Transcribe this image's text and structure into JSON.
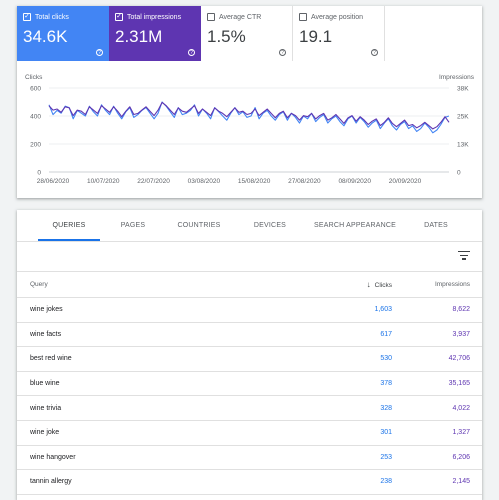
{
  "metrics": [
    {
      "label": "Total clicks",
      "value": "34.6K",
      "checked": true,
      "color": "#4285f4"
    },
    {
      "label": "Total impressions",
      "value": "2.31M",
      "checked": true,
      "color": "#5e35b1"
    },
    {
      "label": "Average CTR",
      "value": "1.5%",
      "checked": false
    },
    {
      "label": "Average position",
      "value": "19.1",
      "checked": false
    }
  ],
  "help_glyph": "?",
  "check_glyph": "✓",
  "chart_data": {
    "type": "line",
    "left_axis_label": "Clicks",
    "right_axis_label": "Impressions",
    "left_ticks": [
      "600",
      "400",
      "200",
      "0"
    ],
    "right_ticks": [
      "38K",
      "25K",
      "13K",
      "0"
    ],
    "left_ylim": [
      0,
      600
    ],
    "right_ylim": [
      0,
      38000
    ],
    "x_ticks": [
      "28/06/2020",
      "10/07/2020",
      "22/07/2020",
      "03/08/2020",
      "15/08/2020",
      "27/08/2020",
      "08/09/2020",
      "20/09/2020"
    ],
    "grid": true,
    "series": [
      {
        "name": "Total clicks",
        "axis": "left",
        "color": "#4285f4",
        "values": [
          480,
          410,
          440,
          420,
          470,
          460,
          380,
          440,
          420,
          400,
          470,
          430,
          400,
          480,
          440,
          410,
          470,
          420,
          380,
          430,
          460,
          390,
          410,
          440,
          460,
          420,
          380,
          420,
          500,
          470,
          430,
          390,
          460,
          410,
          420,
          440,
          480,
          400,
          450,
          420,
          380,
          460,
          430,
          400,
          370,
          420,
          460,
          410,
          430,
          390,
          400,
          460,
          380,
          420,
          440,
          400,
          370,
          410,
          430,
          370,
          420,
          390,
          350,
          400,
          380,
          420,
          360,
          390,
          410,
          350,
          380,
          400,
          360,
          330,
          380,
          400,
          350,
          390,
          360,
          320,
          350,
          370,
          310,
          350,
          380,
          330,
          300,
          340,
          360,
          310,
          330,
          290,
          310,
          350,
          320,
          280,
          300,
          340,
          390,
          400
        ]
      },
      {
        "name": "Total impressions",
        "axis": "right",
        "color": "#5e35b1",
        "values": [
          30000,
          28000,
          28500,
          27000,
          29500,
          29000,
          25500,
          28000,
          27500,
          26000,
          29500,
          28000,
          26500,
          30000,
          28500,
          27000,
          29500,
          27500,
          25000,
          27500,
          29500,
          26000,
          26500,
          28000,
          29500,
          27500,
          25500,
          28000,
          31500,
          30000,
          28000,
          26000,
          29000,
          27500,
          27000,
          28500,
          30000,
          26500,
          28500,
          27000,
          25500,
          29000,
          27500,
          26500,
          25000,
          27000,
          29000,
          27000,
          27500,
          26000,
          26500,
          28500,
          25500,
          27000,
          28500,
          26500,
          24500,
          26500,
          27500,
          24500,
          26500,
          25500,
          23500,
          25500,
          25000,
          26500,
          24000,
          25500,
          26500,
          23500,
          24500,
          26000,
          24000,
          22000,
          24500,
          25500,
          23000,
          25000,
          23500,
          21500,
          23000,
          24000,
          21000,
          22500,
          24500,
          22000,
          20500,
          22000,
          23500,
          21000,
          21500,
          20000,
          21000,
          22500,
          21000,
          19500,
          20500,
          22500,
          25000,
          22500
        ]
      }
    ]
  },
  "tabs": [
    "QUERIES",
    "PAGES",
    "COUNTRIES",
    "DEVICES",
    "SEARCH APPEARANCE",
    "DATES"
  ],
  "table": {
    "headers": {
      "query": "Query",
      "clicks": "Clicks",
      "impressions": "Impressions"
    },
    "sort_glyph": "↓",
    "rows": [
      {
        "query": "wine jokes",
        "clicks": "1,603",
        "impressions": "8,622"
      },
      {
        "query": "wine facts",
        "clicks": "617",
        "impressions": "3,937"
      },
      {
        "query": "best red wine",
        "clicks": "530",
        "impressions": "42,706"
      },
      {
        "query": "blue wine",
        "clicks": "378",
        "impressions": "35,165"
      },
      {
        "query": "wine trivia",
        "clicks": "328",
        "impressions": "4,022"
      },
      {
        "query": "wine joke",
        "clicks": "301",
        "impressions": "1,327"
      },
      {
        "query": "wine hangover",
        "clicks": "253",
        "impressions": "6,206"
      },
      {
        "query": "tannin allergy",
        "clicks": "238",
        "impressions": "2,145"
      }
    ]
  }
}
